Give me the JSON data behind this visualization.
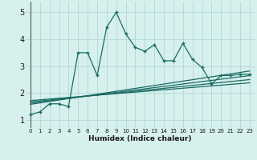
{
  "xlabel": "Humidex (Indice chaleur)",
  "ylabel": "",
  "xlim": [
    -0.5,
    23.5
  ],
  "ylim": [
    0.7,
    5.4
  ],
  "xticks": [
    0,
    1,
    2,
    3,
    4,
    5,
    6,
    7,
    8,
    9,
    10,
    11,
    12,
    13,
    14,
    15,
    16,
    17,
    18,
    19,
    20,
    21,
    22,
    23
  ],
  "yticks": [
    1,
    2,
    3,
    4,
    5
  ],
  "bg_color": "#d6f0ee",
  "grid_color": "#b8dbd8",
  "line_color": "#1a6b63",
  "main_x": [
    0,
    1,
    2,
    3,
    4,
    5,
    6,
    7,
    8,
    9,
    10,
    11,
    12,
    13,
    14,
    15,
    16,
    17,
    18,
    19,
    20,
    21,
    22,
    23
  ],
  "main_y": [
    1.2,
    1.3,
    1.6,
    1.6,
    1.5,
    3.5,
    3.5,
    2.65,
    4.45,
    5.0,
    4.2,
    3.7,
    3.55,
    3.8,
    3.2,
    3.2,
    3.85,
    3.25,
    2.95,
    2.35,
    2.65,
    2.65,
    2.7,
    2.7
  ],
  "trend1_x": [
    0,
    23
  ],
  "trend1_y": [
    1.58,
    2.82
  ],
  "trend2_x": [
    0,
    23
  ],
  "trend2_y": [
    1.62,
    2.65
  ],
  "trend3_x": [
    0,
    23
  ],
  "trend3_y": [
    1.67,
    2.5
  ],
  "trend4_x": [
    0,
    23
  ],
  "trend4_y": [
    1.72,
    2.38
  ]
}
